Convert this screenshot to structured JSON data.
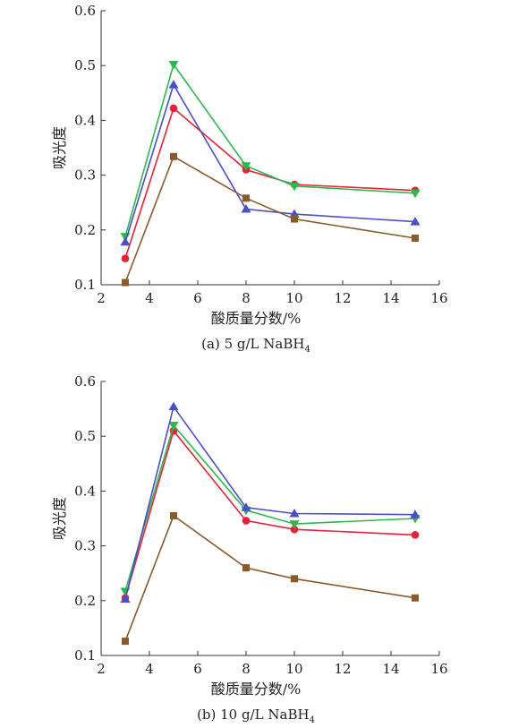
{
  "chart_data": [
    {
      "type": "line",
      "caption_prefix": "(a) 5 g/L NaBH",
      "caption_sub": "4",
      "xlabel": "酸质量分数/%",
      "ylabel": "吸光度",
      "xlim": [
        2,
        16
      ],
      "ylim": [
        0.1,
        0.6
      ],
      "xticks": [
        2,
        4,
        6,
        8,
        10,
        12,
        14,
        16
      ],
      "yticks": [
        "0.1",
        "0.2",
        "0.3",
        "0.4",
        "0.5",
        "0.6"
      ],
      "x": [
        3,
        5,
        8,
        10,
        15
      ],
      "series": [
        {
          "color": "#e8203a",
          "marker": "circle",
          "values": [
            0.148,
            0.422,
            0.31,
            0.283,
            0.272
          ]
        },
        {
          "color": "#2db84d",
          "marker": "triangle-down",
          "values": [
            0.188,
            0.502,
            0.317,
            0.28,
            0.267
          ]
        },
        {
          "color": "#4a4fc4",
          "marker": "triangle-up",
          "values": [
            0.178,
            0.465,
            0.238,
            0.229,
            0.215
          ]
        },
        {
          "color": "#8b5a2b",
          "marker": "square",
          "values": [
            0.104,
            0.334,
            0.258,
            0.22,
            0.185
          ]
        }
      ]
    },
    {
      "type": "line",
      "caption_prefix": "(b) 10 g/L NaBH",
      "caption_sub": "4",
      "xlabel": "酸质量分数/%",
      "ylabel": "吸光度",
      "xlim": [
        2,
        16
      ],
      "ylim": [
        0.1,
        0.6
      ],
      "xticks": [
        2,
        4,
        6,
        8,
        10,
        12,
        14,
        16
      ],
      "yticks": [
        "0.1",
        "0.2",
        "0.3",
        "0.4",
        "0.5",
        "0.6"
      ],
      "x": [
        3,
        5,
        8,
        10,
        15
      ],
      "series": [
        {
          "color": "#e8203a",
          "marker": "circle",
          "values": [
            0.205,
            0.51,
            0.346,
            0.33,
            0.32
          ]
        },
        {
          "color": "#2db84d",
          "marker": "triangle-down",
          "values": [
            0.217,
            0.52,
            0.365,
            0.34,
            0.35
          ]
        },
        {
          "color": "#4a4fc4",
          "marker": "triangle-up",
          "values": [
            0.203,
            0.554,
            0.37,
            0.359,
            0.357
          ]
        },
        {
          "color": "#8b5a2b",
          "marker": "square",
          "values": [
            0.126,
            0.355,
            0.26,
            0.24,
            0.205
          ]
        }
      ]
    }
  ]
}
